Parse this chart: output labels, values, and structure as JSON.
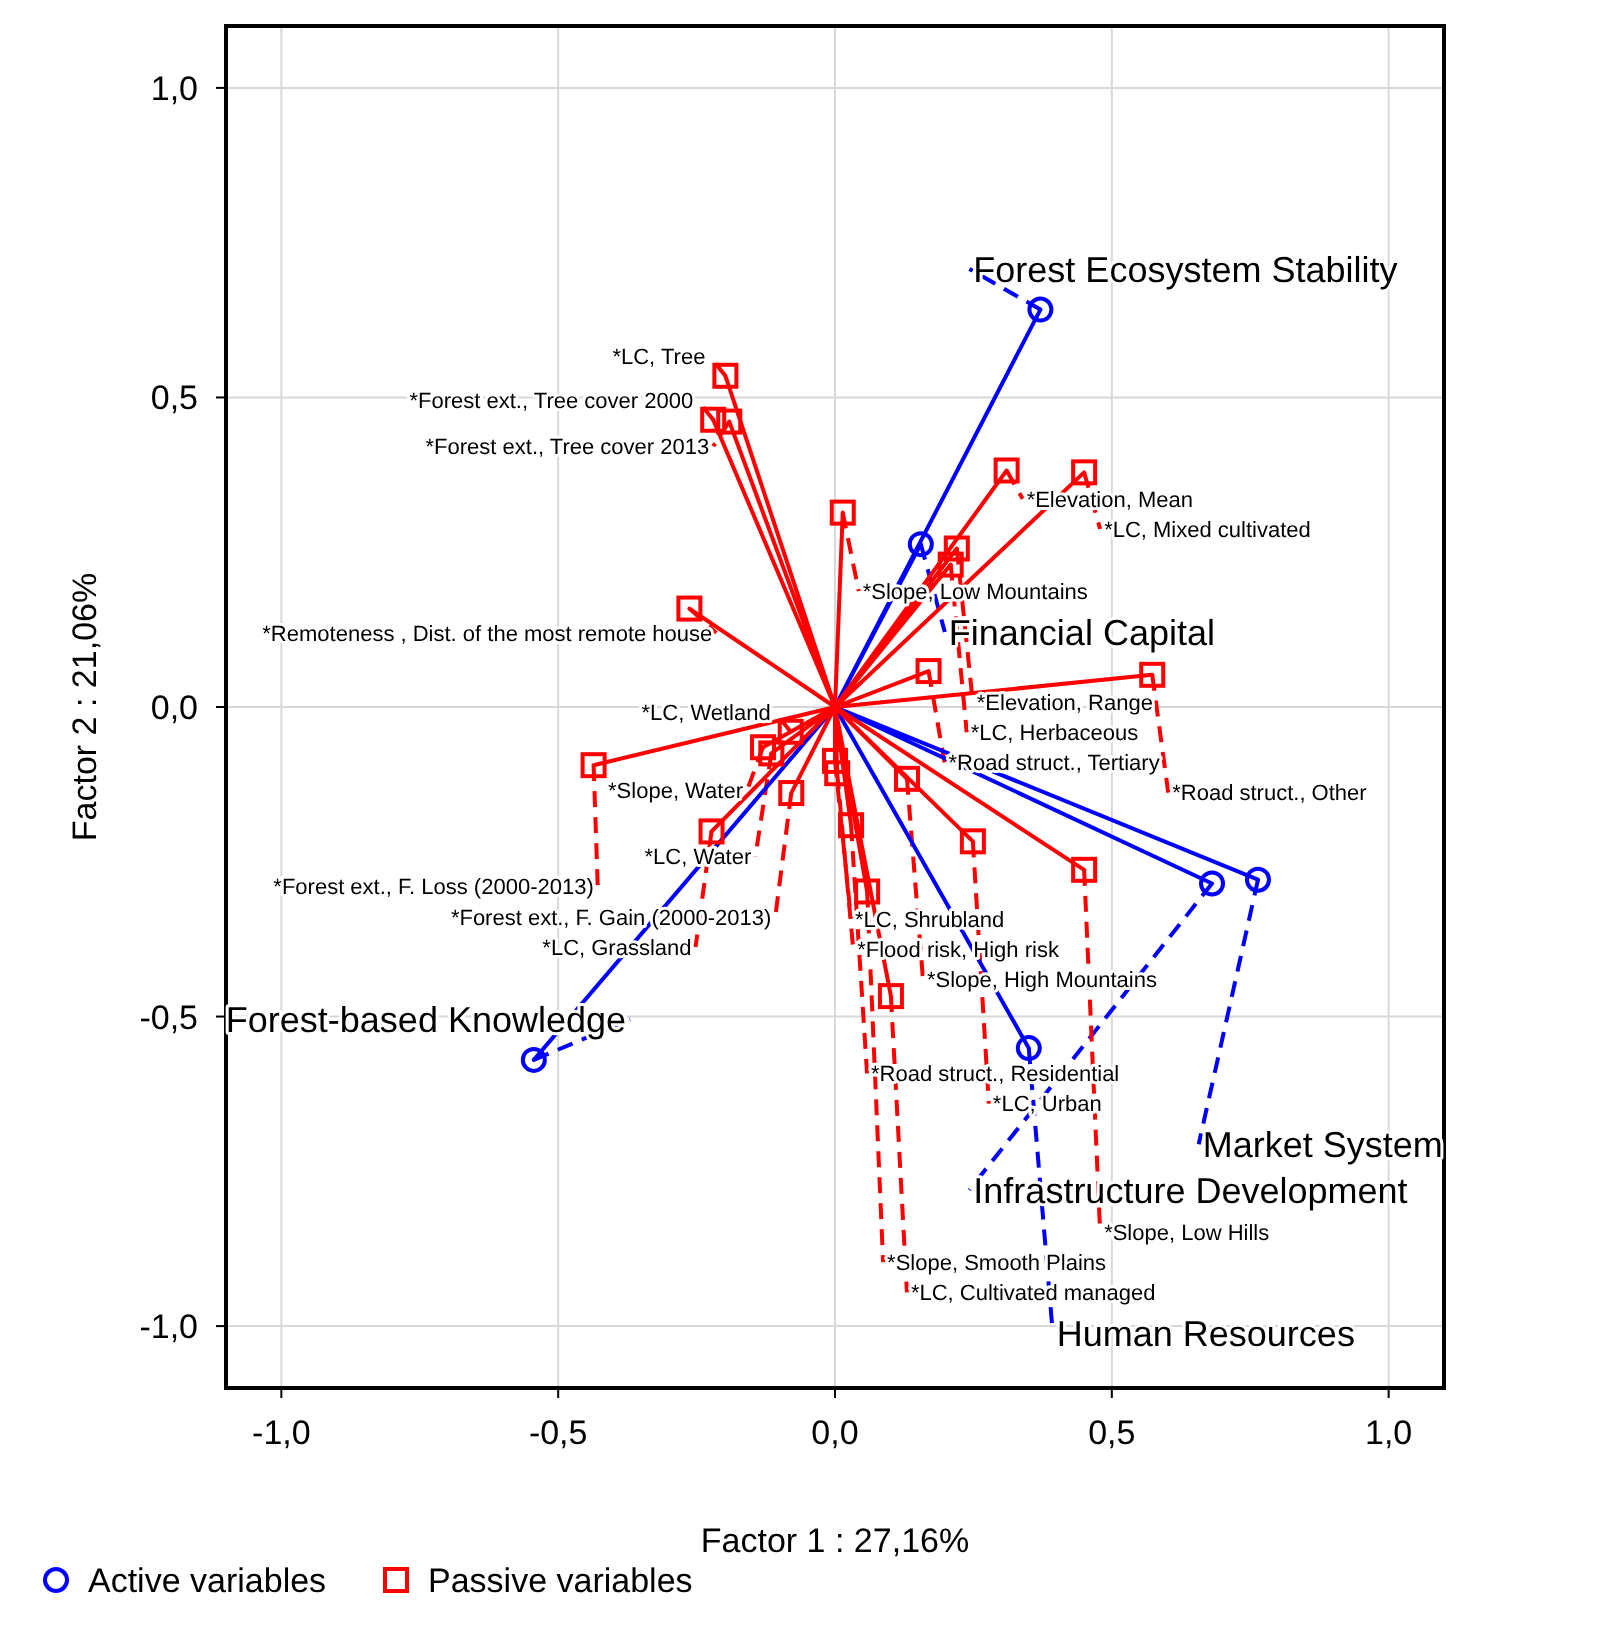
{
  "chart_data": {
    "type": "scatter",
    "xlabel": "Factor 1 : 27,16%",
    "ylabel": "Factor 2 : 21,06%",
    "xlim": [
      -1.1,
      1.1
    ],
    "ylim": [
      -1.1,
      1.1
    ],
    "xticks": [
      {
        "value": -1,
        "label": "-1,0"
      },
      {
        "value": -0.5,
        "label": "-0,5"
      },
      {
        "value": 0,
        "label": "0,0"
      },
      {
        "value": 0.5,
        "label": "0,5"
      },
      {
        "value": 1,
        "label": "1,0"
      }
    ],
    "yticks": [
      {
        "value": -1,
        "label": "-1,0"
      },
      {
        "value": -0.5,
        "label": "-0,5"
      },
      {
        "value": 0,
        "label": "0,0"
      },
      {
        "value": 0.5,
        "label": "0,5"
      },
      {
        "value": 1,
        "label": "1,0"
      }
    ],
    "grid": true,
    "legend": "bottom left",
    "series": [
      {
        "type": "line",
        "color": "#0000ff",
        "marker": "none",
        "line_style": "solid",
        "x": [
          0,
          0.371,
          0,
          0.155,
          0,
          0.764,
          0,
          0.681,
          0,
          0.35,
          0,
          -0.544
        ],
        "values": [
          0,
          0.642,
          0,
          0.263,
          0,
          -0.279,
          0,
          -0.285,
          0,
          -0.551,
          0,
          -0.57
        ]
      },
      {
        "type": "line",
        "color": "#ff0000",
        "marker": "none",
        "line_style": "solid",
        "x": [
          0,
          -0.198,
          0,
          -0.191,
          0,
          -0.22,
          0,
          0.014,
          0,
          0.31,
          0,
          0.45,
          0,
          -0.263,
          0,
          0.22,
          0,
          0.209,
          0,
          0.169,
          0,
          -0.08,
          0,
          -0.13,
          0,
          0.573,
          0,
          -0.115,
          0,
          0.0,
          0,
          -0.436,
          0,
          0.13,
          0,
          0.004,
          0,
          -0.223,
          0,
          0.249,
          0,
          -0.079,
          0,
          0.45,
          0,
          0.029,
          0,
          0.058,
          0,
          0.101
        ],
        "values": [
          0,
          0.535,
          0,
          0.461,
          0,
          0.464,
          0,
          0.314,
          0,
          0.382,
          0,
          0.379,
          0,
          0.159,
          0,
          0.256,
          0,
          0.23,
          0,
          0.058,
          0,
          -0.04,
          0,
          -0.065,
          0,
          0.052,
          0,
          -0.075,
          0,
          -0.087,
          0,
          -0.094,
          0,
          -0.116,
          0,
          -0.107,
          0,
          -0.201,
          0,
          -0.217,
          0,
          -0.139,
          0,
          -0.263,
          0,
          -0.191,
          0,
          -0.298,
          0,
          -0.467
        ]
      },
      {
        "type": "scatter",
        "name": "Active variables",
        "color": "#0000ff",
        "marker": "circle",
        "x": [
          0.371,
          0.155,
          0.764,
          0.681,
          0.35,
          -0.544
        ],
        "values": [
          0.642,
          0.263,
          -0.279,
          -0.285,
          -0.551,
          -0.57
        ]
      },
      {
        "type": "scatter",
        "name": "Passive variables",
        "color": "#ff0000",
        "marker": "square",
        "x": [
          -0.198,
          -0.191,
          -0.22,
          0.014,
          0.31,
          0.45,
          -0.263,
          0.22,
          0.209,
          0.169,
          -0.08,
          -0.13,
          0.573,
          -0.115,
          0.0,
          -0.436,
          0.13,
          0.004,
          -0.223,
          0.249,
          -0.079,
          0.45,
          0.029,
          0.058,
          0.101
        ],
        "values": [
          0.535,
          0.461,
          0.464,
          0.314,
          0.382,
          0.379,
          0.159,
          0.256,
          0.23,
          0.058,
          -0.04,
          -0.065,
          0.052,
          -0.075,
          -0.087,
          -0.094,
          -0.116,
          -0.107,
          -0.201,
          -0.217,
          -0.139,
          -0.263,
          -0.191,
          -0.298,
          -0.467
        ]
      }
    ],
    "annotations": [
      {
        "text": "Forest Ecosystem Stability",
        "x": 0.371,
        "y": 0.642
      },
      {
        "text": "Financial Capital",
        "x": 0.155,
        "y": 0.263
      },
      {
        "text": "Market System",
        "x": 0.764,
        "y": -0.279
      },
      {
        "text": "Infrastructure Development",
        "x": 0.681,
        "y": -0.285
      },
      {
        "text": "Human Resources",
        "x": 0.35,
        "y": -0.551
      },
      {
        "text": "Forest-based Knowledge",
        "x": -0.544,
        "y": -0.57
      },
      {
        "text": "*LC, Tree",
        "x": -0.198,
        "y": 0.535
      },
      {
        "text": "*Forest ext., Tree cover 2013",
        "x": -0.191,
        "y": 0.461
      },
      {
        "text": "*Forest ext., Tree cover 2000",
        "x": -0.22,
        "y": 0.464
      },
      {
        "text": "*Slope, Low Mountains",
        "x": 0.014,
        "y": 0.314
      },
      {
        "text": "*Elevation, Mean",
        "x": 0.31,
        "y": 0.382
      },
      {
        "text": "*LC, Mixed cultivated",
        "x": 0.45,
        "y": 0.379
      },
      {
        "text": "*Remoteness , Dist. of the most remote house",
        "x": -0.263,
        "y": 0.159
      },
      {
        "text": "*Elevation, Range",
        "x": 0.22,
        "y": 0.256
      },
      {
        "text": "*LC, Herbaceous",
        "x": 0.209,
        "y": 0.23
      },
      {
        "text": "*Road struct., Tertiary",
        "x": 0.169,
        "y": 0.058
      },
      {
        "text": "*LC, Wetland",
        "x": -0.08,
        "y": -0.04
      },
      {
        "text": "*Slope, Water",
        "x": -0.13,
        "y": -0.065
      },
      {
        "text": "*Road struct., Other",
        "x": 0.573,
        "y": 0.052
      },
      {
        "text": "*LC, Water",
        "x": -0.115,
        "y": -0.075
      },
      {
        "text": "*LC, Shrubland",
        "x": 0.0,
        "y": -0.087
      },
      {
        "text": "*Forest ext., F. Loss (2000-2013)",
        "x": -0.436,
        "y": -0.094
      },
      {
        "text": "*Slope, High Mountains",
        "x": 0.13,
        "y": -0.116
      },
      {
        "text": "*Flood risk, High risk",
        "x": 0.004,
        "y": -0.107
      },
      {
        "text": "*LC, Grassland",
        "x": -0.223,
        "y": -0.201
      },
      {
        "text": "*LC, Urban",
        "x": 0.249,
        "y": -0.217
      },
      {
        "text": "*Forest ext., F. Gain (2000-2013)",
        "x": -0.079,
        "y": -0.139
      },
      {
        "text": "*Slope, Low Hills",
        "x": 0.45,
        "y": -0.263
      },
      {
        "text": "*Road struct., Residential",
        "x": 0.029,
        "y": -0.191
      },
      {
        "text": "*Slope, Smooth Plains",
        "x": 0.058,
        "y": -0.298
      },
      {
        "text": "*LC, Cultivated managed",
        "x": 0.101,
        "y": -0.467
      }
    ]
  }
}
